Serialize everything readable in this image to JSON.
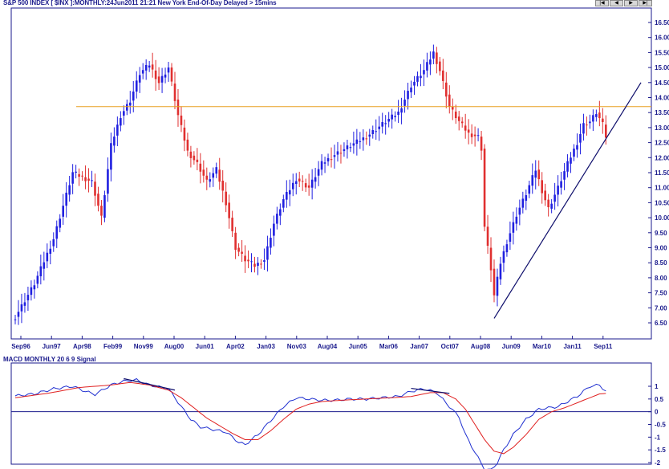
{
  "header": {
    "title": "S&P 500 INDEX [ $INX ]:MONTHLY:24Jun2011 21:21 New York End-Of-Day Delayed > 15mins",
    "nav_buttons": [
      "|◀",
      "◀",
      "▶",
      "▶|"
    ]
  },
  "chart_data": [
    {
      "type": "candlestick",
      "title": "S&P 500 INDEX [ $INX ]:MONTHLY:24Jun2011 21:21 New York End-Of-Day Delayed > 15mins",
      "y_ticks": [
        "6.50",
        "7.00",
        "7.50",
        "8.00",
        "8.50",
        "9.00",
        "9.50",
        "10.00",
        "10.50",
        "11.00",
        "11.50",
        "12.00",
        "12.50",
        "13.00",
        "13.50",
        "14.00",
        "14.50",
        "15.00",
        "15.50",
        "16.00",
        "16.50"
      ],
      "x_ticks": [
        "Sep96",
        "Jun97",
        "Apr98",
        "Feb99",
        "Nov99",
        "Aug00",
        "Jun01",
        "Apr02",
        "Jan03",
        "Nov03",
        "Aug04",
        "Jun05",
        "Mar06",
        "Jan07",
        "Oct07",
        "Aug08",
        "Jun09",
        "Mar10",
        "Jan11",
        "Sep11"
      ],
      "ylim": [
        6.2,
        16.7
      ],
      "grid": false,
      "colors": {
        "up": "#2020e0",
        "down": "#e03030"
      },
      "close_path": [
        [
          0,
          6.7
        ],
        [
          6,
          7.8
        ],
        [
          12,
          9.3
        ],
        [
          18,
          11.5
        ],
        [
          24,
          11.2
        ],
        [
          27,
          10.0
        ],
        [
          30,
          12.4
        ],
        [
          33,
          13.4
        ],
        [
          36,
          13.9
        ],
        [
          39,
          14.8
        ],
        [
          42,
          15.1
        ],
        [
          45,
          14.5
        ],
        [
          48,
          15.0
        ],
        [
          51,
          13.4
        ],
        [
          54,
          12.2
        ],
        [
          57,
          11.8
        ],
        [
          60,
          11.2
        ],
        [
          63,
          11.6
        ],
        [
          66,
          10.5
        ],
        [
          69,
          9.0
        ],
        [
          72,
          8.6
        ],
        [
          75,
          8.4
        ],
        [
          78,
          8.6
        ],
        [
          81,
          9.8
        ],
        [
          84,
          10.6
        ],
        [
          88,
          11.3
        ],
        [
          92,
          11.0
        ],
        [
          96,
          11.8
        ],
        [
          100,
          12.1
        ],
        [
          105,
          12.4
        ],
        [
          110,
          12.7
        ],
        [
          116,
          13.2
        ],
        [
          120,
          13.5
        ],
        [
          124,
          14.4
        ],
        [
          128,
          14.9
        ],
        [
          131,
          15.5
        ],
        [
          133,
          14.9
        ],
        [
          136,
          13.7
        ],
        [
          139,
          13.2
        ],
        [
          142,
          12.8
        ],
        [
          145,
          12.7
        ],
        [
          146,
          12.3
        ],
        [
          147,
          9.7
        ],
        [
          148,
          9.0
        ],
        [
          149,
          8.3
        ],
        [
          150,
          7.4
        ],
        [
          152,
          8.5
        ],
        [
          154,
          9.2
        ],
        [
          157,
          10.1
        ],
        [
          160,
          10.8
        ],
        [
          163,
          11.6
        ],
        [
          165,
          10.9
        ],
        [
          167,
          10.3
        ],
        [
          170,
          11.0
        ],
        [
          173,
          11.8
        ],
        [
          176,
          12.5
        ],
        [
          178,
          13.1
        ],
        [
          180,
          13.2
        ],
        [
          182,
          13.5
        ],
        [
          184,
          13.1
        ],
        [
          185,
          12.7
        ]
      ],
      "annotations": [
        {
          "type": "horizontal-line",
          "value": 13.7,
          "color": "#e8a020"
        },
        {
          "type": "trend-line",
          "from": [
            150,
            6.65
          ],
          "to": [
            196,
            14.5
          ],
          "color": "#0d0d6b"
        }
      ]
    },
    {
      "type": "line",
      "title": "MACD MONTHLY 20 6 9 Signal",
      "y_ticks": [
        "1",
        "0.5",
        "0",
        "-0.5",
        "-1",
        "-1.5",
        "-2"
      ],
      "ylim": [
        -2.4,
        1.5
      ],
      "colors": {
        "macd": "#2030d0",
        "signal": "#e02020",
        "zero": "#1a1a8c"
      },
      "series": [
        {
          "values": [
            [
              0,
              0.62
            ],
            [
              6,
              0.7
            ],
            [
              12,
              0.9
            ],
            [
              18,
              1.0
            ],
            [
              22,
              0.8
            ],
            [
              25,
              0.68
            ],
            [
              30,
              1.05
            ],
            [
              34,
              1.2
            ],
            [
              38,
              1.25
            ],
            [
              42,
              1.05
            ],
            [
              48,
              0.9
            ],
            [
              52,
              0.2
            ],
            [
              55,
              -0.3
            ],
            [
              58,
              -0.6
            ],
            [
              62,
              -0.7
            ],
            [
              66,
              -0.8
            ],
            [
              70,
              -1.2
            ],
            [
              72,
              -1.3
            ],
            [
              76,
              -0.9
            ],
            [
              80,
              -0.35
            ],
            [
              84,
              0.2
            ],
            [
              88,
              0.55
            ],
            [
              92,
              0.5
            ],
            [
              96,
              0.45
            ],
            [
              100,
              0.45
            ],
            [
              105,
              0.5
            ],
            [
              110,
              0.5
            ],
            [
              115,
              0.55
            ],
            [
              120,
              0.6
            ],
            [
              124,
              0.8
            ],
            [
              128,
              0.9
            ],
            [
              132,
              0.75
            ],
            [
              136,
              0.2
            ],
            [
              139,
              -0.2
            ],
            [
              141,
              -0.9
            ],
            [
              144,
              -1.6
            ],
            [
              147,
              -2.25
            ],
            [
              149,
              -2.3
            ],
            [
              151,
              -2.0
            ],
            [
              153,
              -1.5
            ],
            [
              156,
              -0.9
            ],
            [
              160,
              -0.3
            ],
            [
              164,
              0.1
            ],
            [
              167,
              0.15
            ],
            [
              170,
              0.2
            ],
            [
              173,
              0.4
            ],
            [
              176,
              0.6
            ],
            [
              180,
              1.0
            ],
            [
              183,
              1.05
            ],
            [
              185,
              0.8
            ]
          ]
        },
        {
          "values": [
            [
              0,
              0.55
            ],
            [
              10,
              0.72
            ],
            [
              20,
              0.95
            ],
            [
              30,
              1.05
            ],
            [
              36,
              1.15
            ],
            [
              42,
              1.05
            ],
            [
              48,
              0.85
            ],
            [
              52,
              0.55
            ],
            [
              56,
              0.15
            ],
            [
              60,
              -0.25
            ],
            [
              64,
              -0.55
            ],
            [
              68,
              -0.85
            ],
            [
              72,
              -1.1
            ],
            [
              76,
              -1.1
            ],
            [
              80,
              -0.75
            ],
            [
              84,
              -0.3
            ],
            [
              88,
              0.1
            ],
            [
              92,
              0.3
            ],
            [
              96,
              0.4
            ],
            [
              102,
              0.45
            ],
            [
              110,
              0.5
            ],
            [
              118,
              0.55
            ],
            [
              124,
              0.6
            ],
            [
              130,
              0.75
            ],
            [
              134,
              0.75
            ],
            [
              138,
              0.5
            ],
            [
              141,
              0.1
            ],
            [
              144,
              -0.5
            ],
            [
              147,
              -1.1
            ],
            [
              150,
              -1.55
            ],
            [
              153,
              -1.65
            ],
            [
              156,
              -1.4
            ],
            [
              160,
              -0.9
            ],
            [
              164,
              -0.3
            ],
            [
              168,
              0.0
            ],
            [
              172,
              0.15
            ],
            [
              176,
              0.35
            ],
            [
              180,
              0.55
            ],
            [
              183,
              0.7
            ],
            [
              185,
              0.72
            ]
          ]
        }
      ],
      "annotations": [
        {
          "type": "divergence-line",
          "from": [
            34,
            1.3
          ],
          "to": [
            50,
            0.85
          ],
          "color": "#0d0d6b"
        },
        {
          "type": "divergence-line",
          "from": [
            124,
            0.92
          ],
          "to": [
            136,
            0.72
          ],
          "color": "#0d0d6b"
        }
      ]
    }
  ],
  "macd_label": "MACD MONTHLY 20 6 9 Signal"
}
